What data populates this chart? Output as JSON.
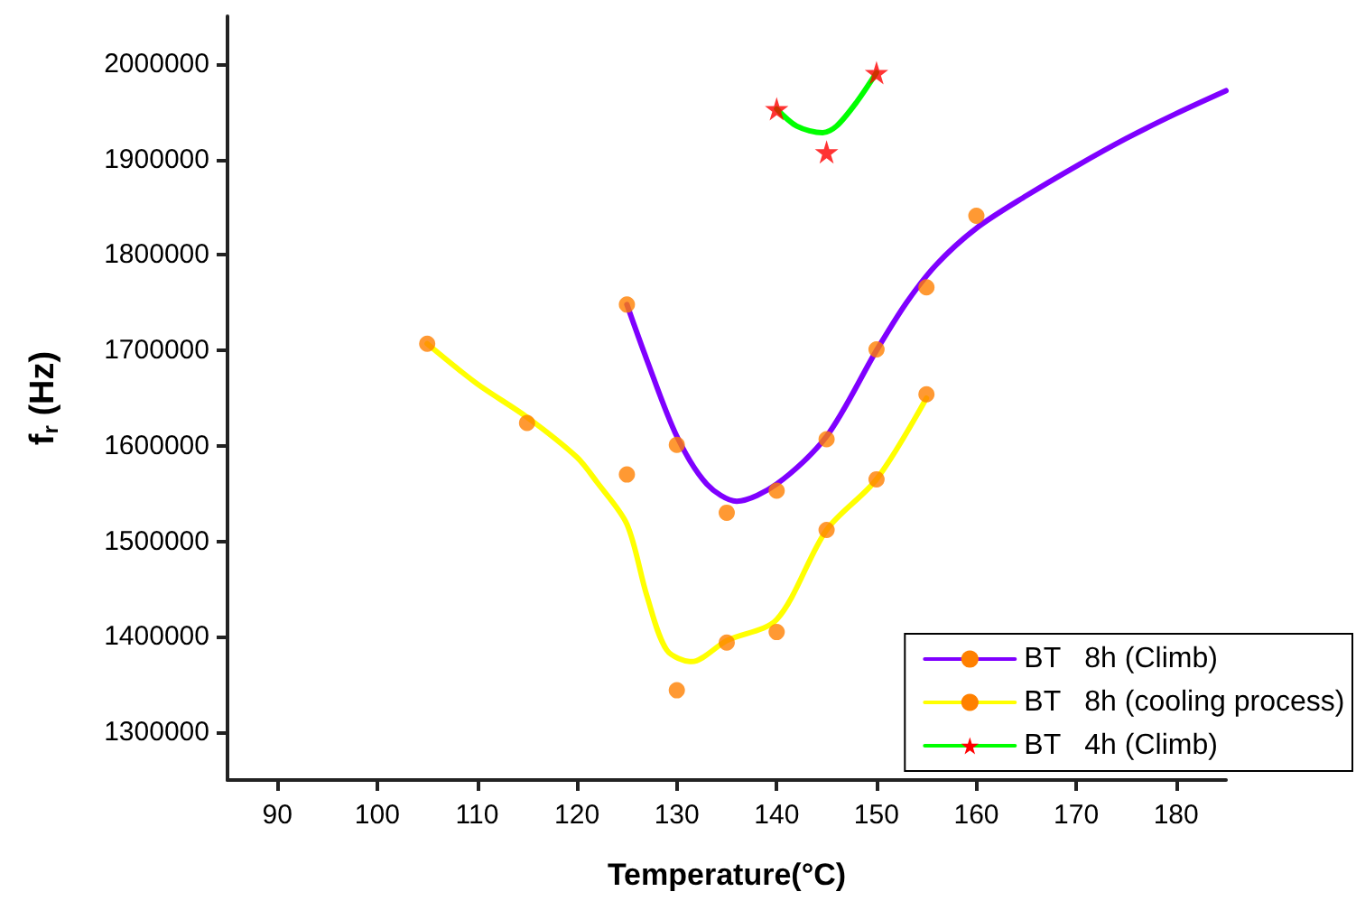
{
  "chart_data": {
    "type": "line",
    "xlabel": "Temperature(°C)",
    "ylabel": "f$_{r}$ (Hz)",
    "xlim": [
      85,
      185
    ],
    "xticks": [
      90,
      100,
      110,
      120,
      130,
      140,
      150,
      160,
      170,
      180
    ],
    "ylim": [
      1250000,
      2050000
    ],
    "yticks": [
      1300000,
      1400000,
      1500000,
      1600000,
      1700000,
      1800000,
      1900000,
      2000000
    ],
    "grid": false,
    "legend": "bottom right",
    "series": [
      {
        "name": "BT   8h (Climb)",
        "color": "#7f00ff",
        "marker": "none",
        "x": [
          125,
          127,
          130,
          133,
          136,
          140,
          145,
          150,
          153,
          156,
          160,
          165,
          170,
          175,
          180,
          185
        ],
        "values": [
          1748000,
          1690000,
          1610000,
          1560000,
          1542000,
          1560000,
          1610000,
          1700000,
          1750000,
          1790000,
          1828000,
          1862000,
          1893000,
          1922000,
          1948000,
          1972000
        ]
      },
      {
        "type": "scatter",
        "color": "#ff8000",
        "marker": "circle",
        "x": [
          125,
          130,
          135,
          140,
          145,
          150,
          155,
          160
        ],
        "values": [
          1748000,
          1601000,
          1530000,
          1553000,
          1607000,
          1701000,
          1766000,
          1841000
        ]
      },
      {
        "name": "BT   8h (cooling process)",
        "color": "#ffff00",
        "marker": "none",
        "x": [
          105,
          110,
          115,
          120,
          122,
          125,
          127,
          129,
          131.5,
          135,
          140,
          145,
          150,
          155
        ],
        "values": [
          1707000,
          1665000,
          1630000,
          1588000,
          1562000,
          1518000,
          1443000,
          1386000,
          1374000,
          1396000,
          1418000,
          1512000,
          1565000,
          1650000
        ]
      },
      {
        "type": "scatter",
        "color": "#ff8000",
        "marker": "circle",
        "x": [
          105,
          115,
          125,
          130,
          135,
          140,
          145,
          150,
          155
        ],
        "values": [
          1707000,
          1624000,
          1570000,
          1344000,
          1394000,
          1405000,
          1512000,
          1565000,
          1654000
        ]
      },
      {
        "name": "BT   4h (Climb)",
        "color": "#00ff00",
        "marker": "none",
        "x": [
          140,
          142,
          144.6,
          146,
          148,
          150
        ],
        "values": [
          1953000,
          1935000,
          1928000,
          1935000,
          1960000,
          1991000
        ]
      },
      {
        "type": "scatter",
        "color": "#ff0000",
        "marker": "star",
        "x": [
          140,
          145,
          150
        ],
        "values": [
          1953000,
          1908000,
          1991000
        ]
      }
    ]
  }
}
